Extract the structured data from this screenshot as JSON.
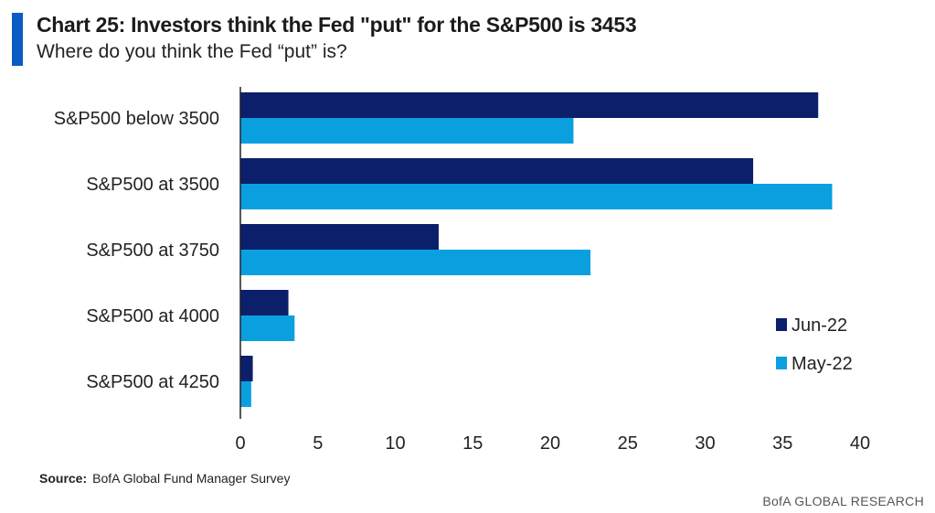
{
  "header": {
    "title": "Chart 25: Investors think the Fed \"put\" for the S&P500 is 3453",
    "subtitle": "Where do you think the Fed “put” is?"
  },
  "footer": {
    "source_label": "Source:",
    "source_text": "BofA Global Fund Manager Survey",
    "brand": "BofA GLOBAL RESEARCH"
  },
  "colors": {
    "accent": "#0a5bc4",
    "jun22": "#0b1f6b",
    "may22": "#0aa0e0"
  },
  "chart_data": {
    "type": "bar",
    "orientation": "horizontal",
    "categories": [
      "S&P500 below 3500",
      "S&P500 at 3500",
      "S&P500 at 3750",
      "S&P500 at 4000",
      "S&P500 at 4250"
    ],
    "series": [
      {
        "name": "Jun-22",
        "values": [
          37.3,
          33.1,
          12.8,
          3.1,
          0.8
        ]
      },
      {
        "name": "May-22",
        "values": [
          21.5,
          38.2,
          22.6,
          3.5,
          0.7
        ]
      }
    ],
    "xlim": [
      0,
      40
    ],
    "xticks": [
      0,
      5,
      10,
      15,
      20,
      25,
      30,
      35,
      40
    ],
    "grid": false,
    "legend_position": "right"
  }
}
